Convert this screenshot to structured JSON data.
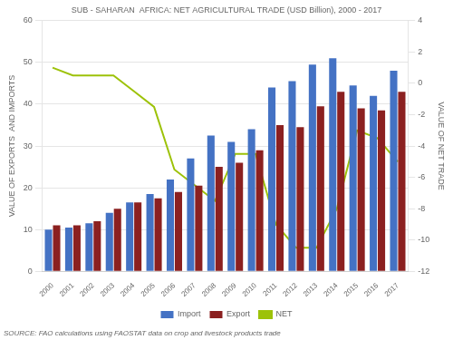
{
  "chart_data": {
    "type": "bar",
    "title": "SUB - SAHARAN  AFRICA: NET AGRICULTURAL TRADE (USD Billion), 2000 - 2017",
    "annotations": [
      "SOURCE: FAO calculations using FAOSTAT data on crop and livestock products trade"
    ],
    "categories": [
      "2000",
      "2001",
      "2002",
      "2003",
      "2004",
      "2005",
      "2006",
      "2007",
      "2008",
      "2009",
      "2010",
      "2011",
      "2012",
      "2013",
      "2014",
      "2015",
      "2016",
      "2017"
    ],
    "series": [
      {
        "name": "Import",
        "type": "bar",
        "color": "#4472C4",
        "values": [
          10,
          10.5,
          11.5,
          14,
          16.5,
          18.5,
          22,
          27,
          32.5,
          31,
          34,
          44,
          45.5,
          49.5,
          51,
          44.5,
          42,
          48
        ]
      },
      {
        "name": "Export",
        "type": "bar",
        "color": "#8B2020",
        "values": [
          11,
          11,
          12,
          15,
          16.5,
          17.5,
          19,
          20.5,
          25,
          26,
          29,
          35,
          34.5,
          39.5,
          43,
          39,
          38.5,
          43
        ]
      },
      {
        "name": "NET",
        "type": "line",
        "axis": "y2",
        "color": "#9DC209",
        "values": [
          1.0,
          0.5,
          0.5,
          0.5,
          -0.5,
          -1.5,
          -5.5,
          -6.5,
          -7.5,
          -4.5,
          -4.5,
          -9,
          -10.5,
          -10.5,
          -8,
          -3,
          -3.5,
          -5
        ]
      }
    ],
    "ylabel": "VALUE OF EXPORTS  AND IMPORTS",
    "y2label": "VALUE OF NET TRADE",
    "ylim": [
      0,
      60
    ],
    "yticks": [
      0,
      10,
      20,
      30,
      40,
      50,
      60
    ],
    "y2lim": [
      -12,
      4
    ],
    "y2ticks": [
      -12,
      -10,
      -8,
      -6,
      -4,
      -2,
      0,
      2,
      4
    ],
    "grid": true,
    "legend": "bottom"
  }
}
